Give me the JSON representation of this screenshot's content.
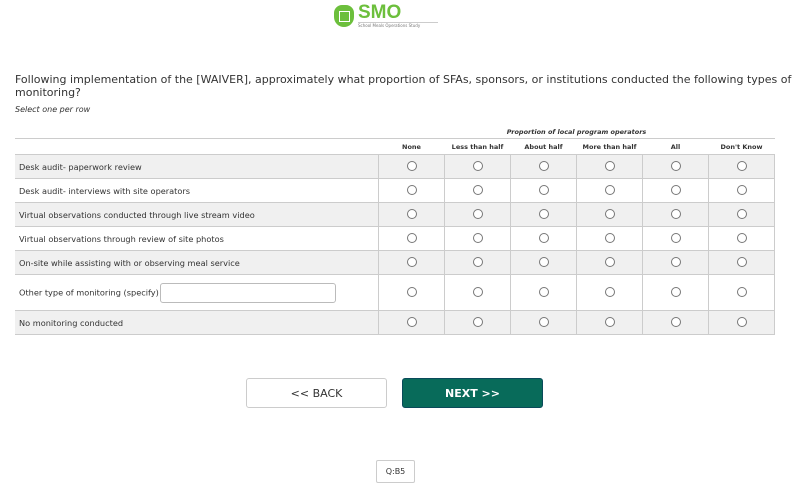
{
  "logo": {
    "title": "SMO",
    "subtitle": "School Meals Operations Study"
  },
  "question": "Following implementation of the [WAIVER], approximately what proportion of SFAs, sponsors, or institutions conducted the following types of monitoring?",
  "instruction": "Select one per row",
  "group_header": "Proportion of local program operators",
  "columns": [
    "None",
    "Less than half",
    "About half",
    "More than half",
    "All",
    "Don't Know"
  ],
  "rows": [
    {
      "label": "Desk audit- paperwork review"
    },
    {
      "label": "Desk audit- interviews with site operators"
    },
    {
      "label": "Virtual observations conducted through live stream video"
    },
    {
      "label": "Virtual observations through review of site photos"
    },
    {
      "label": "On-site while assisting with or observing meal service"
    },
    {
      "label": "Other type of monitoring (specify)",
      "specify": true,
      "value": ""
    },
    {
      "label": "No monitoring conducted"
    }
  ],
  "buttons": {
    "back": "<< BACK",
    "next": "NEXT >>"
  },
  "question_id": "Q:B5",
  "colors": {
    "accent": "#086b5a",
    "logo": "#6cbf3c"
  }
}
